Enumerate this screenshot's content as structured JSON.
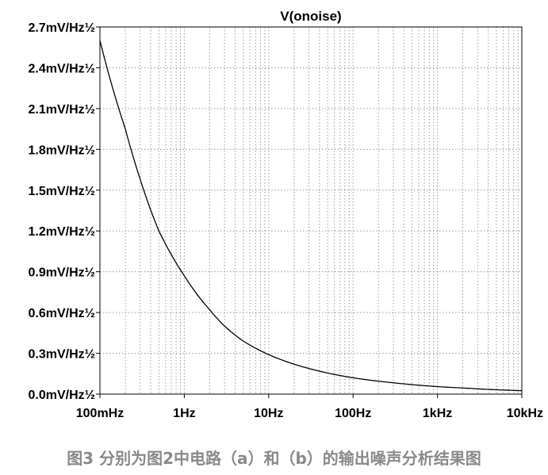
{
  "chart_data": {
    "type": "line",
    "title": "V(onoise)",
    "xscale": "log",
    "xlim": [
      0.1,
      10000
    ],
    "ylim": [
      0.0,
      2.7
    ],
    "grid": true,
    "x_tick_labels": [
      "100mHz",
      "1Hz",
      "10Hz",
      "100Hz",
      "1kHz",
      "10kHz"
    ],
    "x_tick_values": [
      0.1,
      1,
      10,
      100,
      1000,
      10000
    ],
    "y_tick_labels": [
      "0.0mV/Hz½",
      "0.3mV/Hz½",
      "0.6mV/Hz½",
      "0.9mV/Hz½",
      "1.2mV/Hz½",
      "1.5mV/Hz½",
      "1.8mV/Hz½",
      "2.1mV/Hz½",
      "2.4mV/Hz½",
      "2.7mV/Hz½"
    ],
    "y_tick_values": [
      0.0,
      0.3,
      0.6,
      0.9,
      1.2,
      1.5,
      1.8,
      2.1,
      2.4,
      2.7
    ],
    "series": [
      {
        "color": "#000000",
        "x": [
          0.1,
          0.2,
          0.3,
          0.5,
          1,
          2,
          3,
          5,
          10,
          20,
          50,
          100,
          200,
          500,
          1000,
          2000,
          5000,
          10000
        ],
        "y": [
          2.6,
          1.95,
          1.58,
          1.2,
          0.87,
          0.62,
          0.5,
          0.39,
          0.29,
          0.22,
          0.155,
          0.12,
          0.095,
          0.07,
          0.055,
          0.045,
          0.032,
          0.025
        ]
      }
    ]
  },
  "caption": "图3 分别为图2中电路（a）和（b）的输出噪声分析结果图"
}
